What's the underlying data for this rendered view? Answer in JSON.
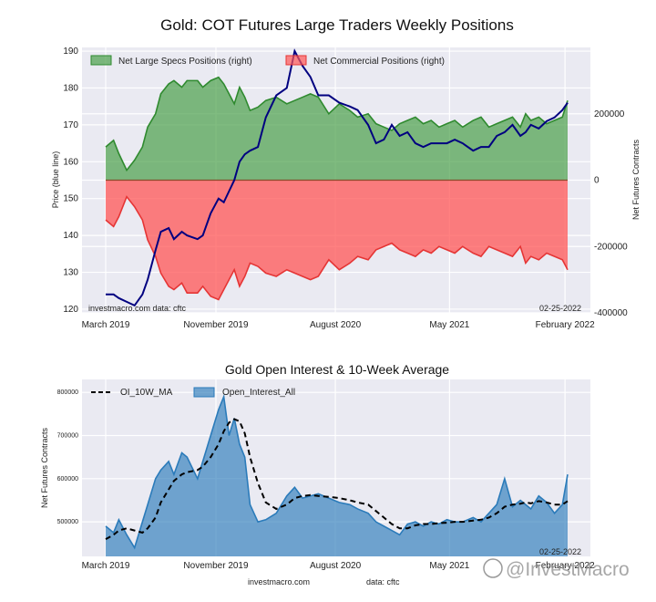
{
  "chart_data": [
    {
      "type": "area",
      "title": "Gold: COT Futures Large Traders Weekly Positions",
      "ylabel_left": "Price (blue line)",
      "ylabel_right": "Net Futures Contracts",
      "ylim_left": [
        119,
        191
      ],
      "ylim_right": [
        -400000,
        400000
      ],
      "yticks_left": [
        "120",
        "130",
        "140",
        "150",
        "160",
        "170",
        "180",
        "190"
      ],
      "yticks_right": [
        "-400000",
        "-200000",
        "0",
        "200000"
      ],
      "xticks": [
        "March 2019",
        "November 2019",
        "August 2020",
        "May 2021",
        "February 2022"
      ],
      "xtick_positions": [
        0.0,
        0.84,
        1.75,
        2.62,
        3.5
      ],
      "x_range": [
        0.0,
        3.6
      ],
      "grid": true,
      "legend_position": "top-left",
      "annotation_left": "investmacro.com   data: cftc",
      "annotation_right": "02-25-2022",
      "series": [
        {
          "name": "Net Large Specs Positions (right)",
          "color": "#4aa04a",
          "x": [
            0.0,
            0.06,
            0.1,
            0.16,
            0.22,
            0.28,
            0.32,
            0.38,
            0.42,
            0.48,
            0.52,
            0.58,
            0.62,
            0.7,
            0.74,
            0.8,
            0.86,
            0.9,
            0.94,
            0.98,
            1.02,
            1.06,
            1.1,
            1.16,
            1.22,
            1.3,
            1.38,
            1.44,
            1.5,
            1.56,
            1.62,
            1.7,
            1.78,
            1.86,
            1.92,
            2.0,
            2.06,
            2.12,
            2.18,
            2.24,
            2.3,
            2.36,
            2.42,
            2.48,
            2.54,
            2.6,
            2.66,
            2.72,
            2.8,
            2.86,
            2.92,
            2.98,
            3.04,
            3.1,
            3.16,
            3.2,
            3.24,
            3.3,
            3.36,
            3.42,
            3.48,
            3.52
          ],
          "values": [
            100000,
            120000,
            80000,
            30000,
            60000,
            100000,
            160000,
            200000,
            260000,
            290000,
            300000,
            280000,
            300000,
            300000,
            280000,
            300000,
            310000,
            290000,
            260000,
            230000,
            280000,
            250000,
            210000,
            220000,
            240000,
            250000,
            230000,
            240000,
            250000,
            260000,
            250000,
            200000,
            230000,
            210000,
            190000,
            200000,
            170000,
            160000,
            150000,
            170000,
            180000,
            190000,
            170000,
            180000,
            160000,
            170000,
            180000,
            160000,
            180000,
            190000,
            160000,
            170000,
            180000,
            190000,
            160000,
            200000,
            180000,
            190000,
            170000,
            180000,
            190000,
            240000
          ]
        },
        {
          "name": "Net Commercial Positions (right)",
          "color": "#ff5555",
          "x": [
            0.0,
            0.06,
            0.1,
            0.16,
            0.22,
            0.28,
            0.32,
            0.38,
            0.42,
            0.48,
            0.52,
            0.58,
            0.62,
            0.7,
            0.74,
            0.8,
            0.86,
            0.9,
            0.94,
            0.98,
            1.02,
            1.06,
            1.1,
            1.16,
            1.22,
            1.3,
            1.38,
            1.44,
            1.5,
            1.56,
            1.62,
            1.7,
            1.78,
            1.86,
            1.92,
            2.0,
            2.06,
            2.12,
            2.18,
            2.24,
            2.3,
            2.36,
            2.42,
            2.48,
            2.54,
            2.6,
            2.66,
            2.72,
            2.8,
            2.86,
            2.92,
            2.98,
            3.04,
            3.1,
            3.16,
            3.2,
            3.24,
            3.3,
            3.36,
            3.42,
            3.48,
            3.52
          ],
          "values": [
            -120000,
            -140000,
            -110000,
            -50000,
            -80000,
            -120000,
            -180000,
            -230000,
            -280000,
            -320000,
            -330000,
            -310000,
            -340000,
            -340000,
            -320000,
            -350000,
            -360000,
            -330000,
            -300000,
            -270000,
            -320000,
            -290000,
            -250000,
            -260000,
            -280000,
            -290000,
            -270000,
            -280000,
            -290000,
            -300000,
            -290000,
            -240000,
            -270000,
            -250000,
            -230000,
            -240000,
            -210000,
            -200000,
            -190000,
            -210000,
            -220000,
            -230000,
            -210000,
            -220000,
            -200000,
            -210000,
            -220000,
            -200000,
            -220000,
            -230000,
            -200000,
            -210000,
            -220000,
            -230000,
            -200000,
            -250000,
            -230000,
            -240000,
            -220000,
            -230000,
            -240000,
            -270000
          ]
        },
        {
          "name": "Price",
          "color": "#000080",
          "x": [
            0.0,
            0.06,
            0.1,
            0.16,
            0.22,
            0.28,
            0.32,
            0.38,
            0.42,
            0.48,
            0.52,
            0.58,
            0.62,
            0.7,
            0.74,
            0.8,
            0.86,
            0.9,
            0.94,
            0.98,
            1.02,
            1.06,
            1.1,
            1.16,
            1.22,
            1.3,
            1.38,
            1.44,
            1.5,
            1.56,
            1.62,
            1.7,
            1.78,
            1.86,
            1.92,
            2.0,
            2.06,
            2.12,
            2.18,
            2.24,
            2.3,
            2.36,
            2.42,
            2.48,
            2.54,
            2.6,
            2.66,
            2.72,
            2.8,
            2.86,
            2.92,
            2.98,
            3.04,
            3.1,
            3.16,
            3.2,
            3.24,
            3.3,
            3.36,
            3.42,
            3.48,
            3.52
          ],
          "values": [
            124,
            124,
            123,
            122,
            121,
            124,
            128,
            136,
            141,
            142,
            139,
            141,
            140,
            139,
            140,
            146,
            150,
            149,
            152,
            155,
            160,
            162,
            163,
            164,
            172,
            178,
            180,
            190,
            186,
            183,
            178,
            178,
            176,
            175,
            174,
            170,
            165,
            166,
            170,
            167,
            168,
            165,
            164,
            165,
            165,
            165,
            166,
            165,
            163,
            164,
            164,
            167,
            168,
            170,
            167,
            168,
            170,
            169,
            171,
            172,
            174,
            176
          ]
        }
      ]
    },
    {
      "type": "area",
      "title": "Gold Open Interest & 10-Week Average",
      "ylabel": "Net Futures Contracts",
      "ylim": [
        420000,
        830000
      ],
      "yticks": [
        "500000",
        "600000",
        "700000",
        "800000"
      ],
      "xticks": [
        "March 2019",
        "November 2019",
        "August 2020",
        "May 2021",
        "February 2022"
      ],
      "xtick_positions": [
        0.0,
        0.84,
        1.75,
        2.62,
        3.5
      ],
      "x_range": [
        0.0,
        3.6
      ],
      "grid": true,
      "legend_position": "top-left",
      "annotation_right": "02-25-2022",
      "source_left": "investmacro.com",
      "source_right": "data: cftc",
      "watermark": "@InvestMacro",
      "series": [
        {
          "name": "Open_Interest_All",
          "color": "#2b7bba",
          "x": [
            0.0,
            0.06,
            0.1,
            0.16,
            0.22,
            0.28,
            0.32,
            0.38,
            0.42,
            0.48,
            0.52,
            0.58,
            0.62,
            0.7,
            0.74,
            0.8,
            0.86,
            0.9,
            0.94,
            0.98,
            1.02,
            1.06,
            1.1,
            1.16,
            1.22,
            1.3,
            1.38,
            1.44,
            1.5,
            1.56,
            1.62,
            1.7,
            1.78,
            1.86,
            1.92,
            2.0,
            2.06,
            2.12,
            2.18,
            2.24,
            2.3,
            2.36,
            2.42,
            2.48,
            2.54,
            2.6,
            2.66,
            2.72,
            2.8,
            2.86,
            2.92,
            2.98,
            3.04,
            3.1,
            3.16,
            3.2,
            3.24,
            3.3,
            3.36,
            3.42,
            3.48,
            3.52
          ],
          "values": [
            490000,
            475000,
            505000,
            470000,
            440000,
            500000,
            540000,
            600000,
            620000,
            640000,
            610000,
            660000,
            650000,
            600000,
            640000,
            700000,
            760000,
            790000,
            700000,
            740000,
            680000,
            650000,
            540000,
            500000,
            505000,
            520000,
            560000,
            580000,
            555000,
            560000,
            565000,
            555000,
            545000,
            540000,
            530000,
            520000,
            500000,
            490000,
            480000,
            470000,
            495000,
            500000,
            490000,
            500000,
            495000,
            505000,
            500000,
            500000,
            510000,
            500000,
            520000,
            540000,
            600000,
            535000,
            550000,
            540000,
            530000,
            560000,
            545000,
            520000,
            540000,
            610000
          ]
        },
        {
          "name": "OI_10W_MA",
          "color": "#000000",
          "x": [
            0.0,
            0.06,
            0.1,
            0.16,
            0.22,
            0.28,
            0.32,
            0.38,
            0.42,
            0.48,
            0.52,
            0.58,
            0.62,
            0.7,
            0.74,
            0.8,
            0.86,
            0.9,
            0.94,
            0.98,
            1.02,
            1.06,
            1.1,
            1.16,
            1.22,
            1.3,
            1.38,
            1.44,
            1.5,
            1.56,
            1.62,
            1.7,
            1.78,
            1.86,
            1.92,
            2.0,
            2.06,
            2.12,
            2.18,
            2.24,
            2.3,
            2.36,
            2.42,
            2.48,
            2.54,
            2.6,
            2.66,
            2.72,
            2.8,
            2.86,
            2.92,
            2.98,
            3.04,
            3.1,
            3.16,
            3.2,
            3.24,
            3.3,
            3.36,
            3.42,
            3.48,
            3.52
          ],
          "values": [
            460000,
            470000,
            480000,
            485000,
            480000,
            475000,
            485000,
            510000,
            545000,
            575000,
            595000,
            610000,
            615000,
            620000,
            628000,
            650000,
            680000,
            710000,
            730000,
            738000,
            733000,
            705000,
            650000,
            590000,
            545000,
            530000,
            540000,
            555000,
            560000,
            562000,
            560000,
            558000,
            555000,
            550000,
            545000,
            540000,
            525000,
            510000,
            495000,
            485000,
            485000,
            492000,
            495000,
            495000,
            497000,
            498000,
            500000,
            500000,
            503000,
            505000,
            510000,
            520000,
            535000,
            540000,
            542000,
            545000,
            543000,
            548000,
            545000,
            540000,
            540000,
            548000
          ]
        }
      ]
    }
  ]
}
